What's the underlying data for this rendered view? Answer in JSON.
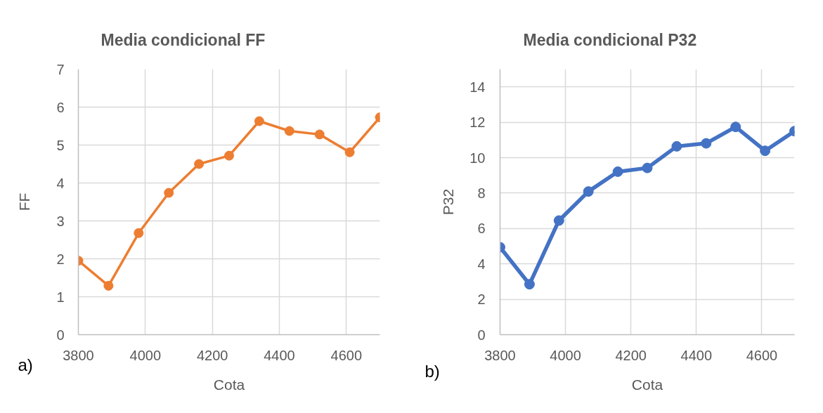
{
  "chart_data": [
    {
      "type": "line",
      "title": "Media condicional FF",
      "xlabel": "Cota",
      "ylabel": "FF",
      "annotations": [
        "a)"
      ],
      "x": [
        3800,
        3890,
        3980,
        4070,
        4160,
        4250,
        4340,
        4430,
        4520,
        4610,
        4700
      ],
      "series": [
        {
          "color": "#ed7d31",
          "values": [
            1.95,
            1.29,
            2.68,
            3.74,
            4.5,
            4.72,
            5.63,
            5.37,
            5.28,
            4.81,
            5.73
          ]
        }
      ],
      "xlim": [
        3800,
        4700
      ],
      "xticks": [
        3800,
        4000,
        4200,
        4400,
        4600
      ],
      "ylim": [
        0,
        7
      ],
      "yticks": [
        0,
        1,
        2,
        3,
        4,
        5,
        6,
        7
      ],
      "grid": true,
      "marker": "circle",
      "line_style": "solid"
    },
    {
      "type": "line",
      "title": "Media condicional P32",
      "xlabel": "Cota",
      "ylabel": "P32",
      "annotations": [
        "b)"
      ],
      "x": [
        3800,
        3890,
        3980,
        4070,
        4160,
        4250,
        4340,
        4430,
        4520,
        4610,
        4700
      ],
      "series": [
        {
          "color": "#4472c4",
          "values": [
            4.94,
            2.85,
            6.45,
            8.09,
            9.21,
            9.42,
            10.64,
            10.81,
            11.74,
            10.39,
            11.5
          ]
        }
      ],
      "xlim": [
        3800,
        4700
      ],
      "xticks": [
        3800,
        4000,
        4200,
        4400,
        4600
      ],
      "ylim": [
        0,
        15
      ],
      "yticks": [
        0,
        2,
        4,
        6,
        8,
        10,
        12,
        14
      ],
      "grid": true,
      "marker": "circle",
      "line_style": "solid"
    }
  ]
}
